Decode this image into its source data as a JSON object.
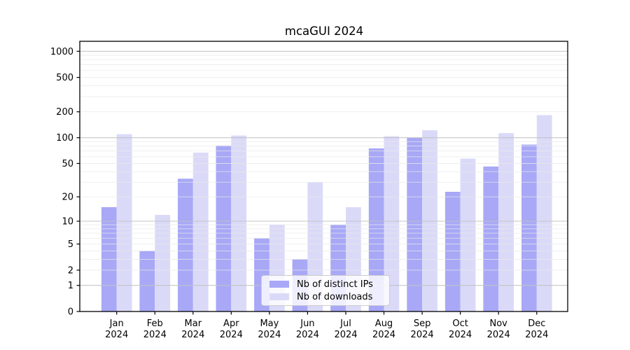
{
  "chart_data": {
    "type": "bar",
    "title": "mcaGUI 2024",
    "categories": [
      "Jan",
      "Feb",
      "Mar",
      "Apr",
      "May",
      "Jun",
      "Jul",
      "Aug",
      "Sep",
      "Oct",
      "Nov",
      "Dec"
    ],
    "category_year_line": "2024",
    "series": [
      {
        "name": "Nb of distinct IPs",
        "color": "#a8a8f7",
        "values": [
          15,
          4,
          33,
          81,
          6,
          3,
          9,
          75,
          100,
          23,
          46,
          83
        ]
      },
      {
        "name": "Nb of downloads",
        "color": "#dadaf8",
        "values": [
          110,
          12,
          67,
          106,
          9,
          30,
          15,
          104,
          122,
          57,
          113,
          183
        ]
      }
    ],
    "yscale": "log1p",
    "ylim": [
      0,
      1306
    ],
    "yticks": [
      0,
      1,
      2,
      5,
      10,
      20,
      50,
      100,
      200,
      500,
      1000
    ],
    "grid": {
      "major_lines": [
        1,
        10,
        100,
        1000
      ],
      "minor_lines": [
        2,
        3,
        4,
        5,
        6,
        7,
        8,
        9,
        20,
        30,
        40,
        50,
        60,
        70,
        80,
        90,
        200,
        300,
        400,
        500,
        600,
        700,
        800,
        900
      ],
      "major_color": "#c3c3c3",
      "minor_color": "#e9e9e9"
    },
    "legend": {
      "position": "lower center"
    },
    "frame_color": "#000000",
    "background_color": "#ffffff"
  }
}
